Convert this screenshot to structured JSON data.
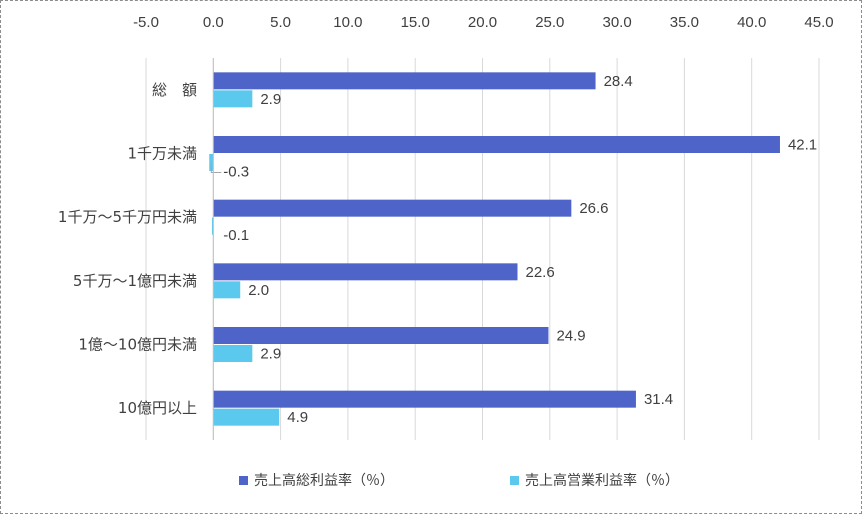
{
  "chart_data": {
    "type": "bar",
    "orientation": "horizontal",
    "categories": [
      "総　額",
      "1千万未満",
      "1千万～5千万円未満",
      "5千万～1億円未満",
      "1億～10億円未満",
      "10億円以上"
    ],
    "series": [
      {
        "name": "売上高総利益率（％）",
        "values": [
          28.4,
          42.1,
          26.6,
          22.6,
          24.9,
          31.4
        ],
        "labels": [
          "28.4",
          "42.1",
          "26.6",
          "22.6",
          "24.9",
          "31.4"
        ],
        "color": "#4F64C8"
      },
      {
        "name": "売上高営業利益率（％）",
        "values": [
          2.9,
          -0.3,
          -0.1,
          2.0,
          2.9,
          4.9
        ],
        "labels": [
          "2.9",
          "-0.3",
          "-0.1",
          "2.0",
          "2.9",
          "4.9"
        ],
        "color": "#5BC8EE"
      }
    ],
    "xlim": [
      -5,
      45
    ],
    "xticks": [
      "-5.0",
      "0.0",
      "5.0",
      "10.0",
      "15.0",
      "20.0",
      "25.0",
      "30.0",
      "35.0",
      "40.0",
      "45.0"
    ],
    "xaxis_position": "top",
    "grid": true,
    "legend": "bottom"
  }
}
